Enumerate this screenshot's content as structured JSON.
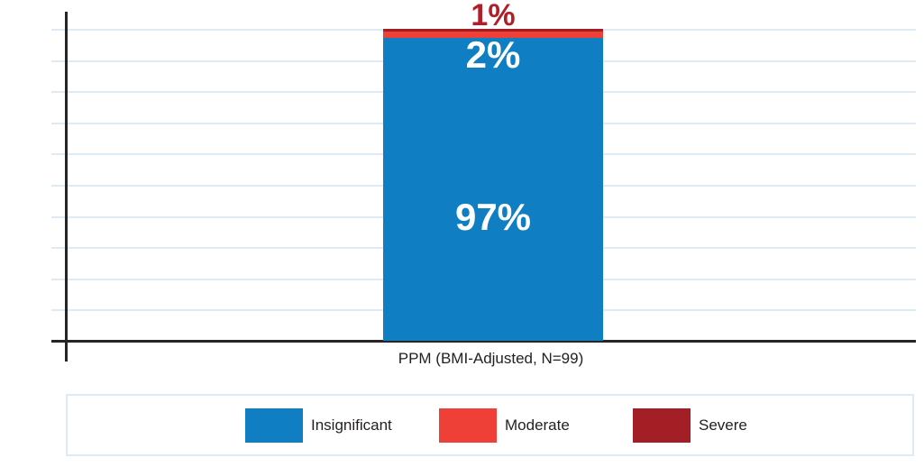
{
  "chart_data": {
    "type": "bar",
    "subtype": "stacked-column",
    "title": "",
    "xlabel": "",
    "ylabel": "",
    "categories": [
      "PPM (BMI-Adjusted, N=99)"
    ],
    "series": [
      {
        "name": "Insignificant",
        "values": [
          97
        ],
        "color": "#0f7ec2",
        "data_label": "97%",
        "label_color": "#ffffff"
      },
      {
        "name": "Moderate",
        "values": [
          2
        ],
        "color": "#ee4036",
        "data_label": "2%",
        "label_color": "#ffffff"
      },
      {
        "name": "Severe",
        "values": [
          1
        ],
        "color": "#a41e26",
        "data_label": "1%",
        "label_color": "#b11e28"
      }
    ],
    "ylim": [
      0,
      100
    ],
    "grid": {
      "visible": true,
      "count": 10,
      "color": "#dcebf5"
    },
    "axis_color": "#262427",
    "legend_position": "bottom"
  }
}
